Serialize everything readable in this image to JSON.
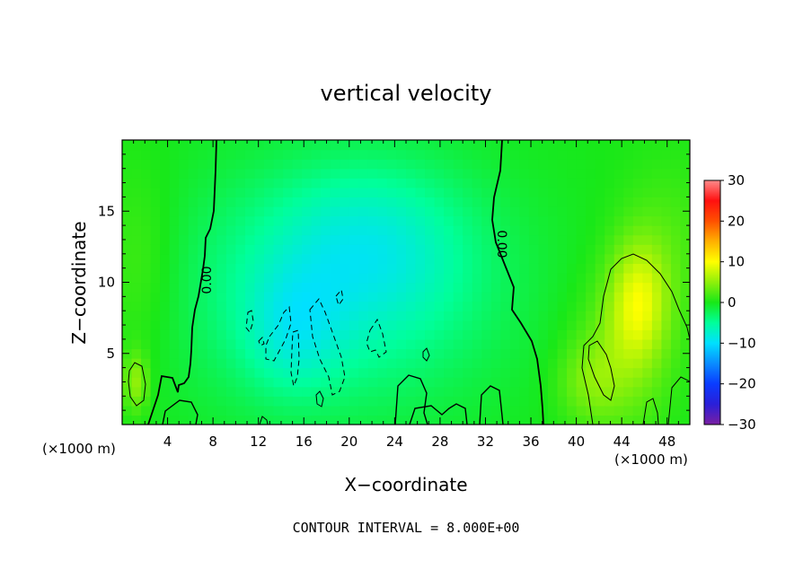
{
  "chart_data": {
    "type": "heatmap",
    "title": "vertical velocity",
    "xlabel": "X−coordinate",
    "ylabel": "Z−coordinate",
    "x_unit_left": "(×1000 m)",
    "x_unit_right": "(×1000 m)",
    "footer": "CONTOUR INTERVAL = 8.000E+00",
    "xlim": [
      0,
      50
    ],
    "ylim": [
      0,
      20
    ],
    "x_ticks": [
      4,
      8,
      12,
      16,
      20,
      24,
      28,
      32,
      36,
      40,
      44,
      48
    ],
    "y_ticks": [
      5,
      10,
      15
    ],
    "colorbar": {
      "range": [
        -30,
        30
      ],
      "ticks": [
        30,
        20,
        10,
        0,
        -10,
        -20,
        -30
      ],
      "tick_labels": [
        "30",
        "20",
        "10",
        "0",
        "−10",
        "−20",
        "−30"
      ],
      "stops": [
        {
          "v": -30,
          "c": "#7a1fa2"
        },
        {
          "v": -25,
          "c": "#2a1fd8"
        },
        {
          "v": -20,
          "c": "#0a3cff"
        },
        {
          "v": -15,
          "c": "#0a8cff"
        },
        {
          "v": -10,
          "c": "#00e0ff"
        },
        {
          "v": -5,
          "c": "#00ff9a"
        },
        {
          "v": 0,
          "c": "#18e818"
        },
        {
          "v": 5,
          "c": "#8ff00a"
        },
        {
          "v": 10,
          "c": "#ffff00"
        },
        {
          "v": 15,
          "c": "#ffb000"
        },
        {
          "v": 20,
          "c": "#ff5000"
        },
        {
          "v": 25,
          "c": "#ff1010"
        },
        {
          "v": 30,
          "c": "#ff8a8a"
        }
      ]
    },
    "contour_label": "0.00",
    "contour_interval": 8.0,
    "features": [
      {
        "x": 19,
        "z": 9.5,
        "amp": -6,
        "sx": 10,
        "sz": 6
      },
      {
        "x": 22,
        "z": 13,
        "amp": -4,
        "sx": 6,
        "sz": 4
      },
      {
        "x": 15,
        "z": 6.5,
        "amp": -4,
        "sx": 3,
        "sz": 3
      },
      {
        "x": 45.5,
        "z": 8.8,
        "amp": 7,
        "sx": 1.8,
        "sz": 3
      },
      {
        "x": 44,
        "z": 5,
        "amp": 4,
        "sx": 3,
        "sz": 4
      },
      {
        "x": 41,
        "z": 3,
        "amp": 3,
        "sx": 2,
        "sz": 2
      },
      {
        "x": 1.2,
        "z": 3,
        "amp": 5,
        "sx": 0.8,
        "sz": 1.5
      },
      {
        "x": 1.5,
        "z": 11,
        "amp": 2.5,
        "sx": 2.5,
        "sz": 5
      },
      {
        "x": 48,
        "z": 13,
        "amp": 2,
        "sx": 3,
        "sz": 4
      }
    ]
  }
}
